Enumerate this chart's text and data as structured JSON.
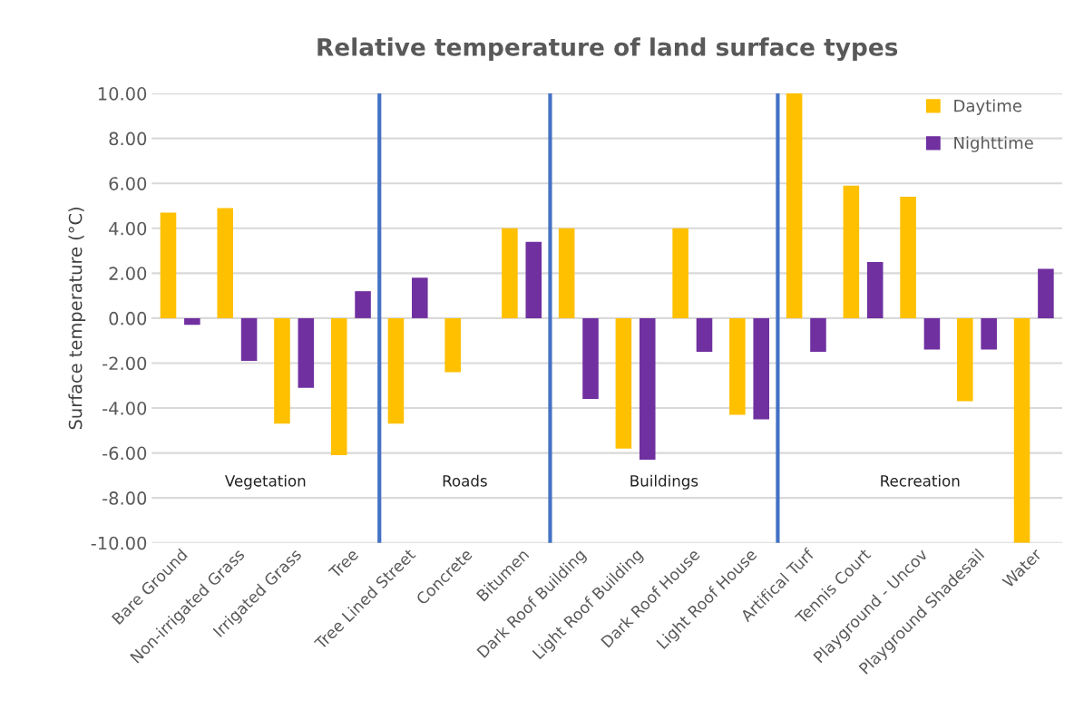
{
  "chart_data": {
    "type": "bar",
    "title": "Relative temperature of land surface types",
    "ylabel": "Surface temperature (°C)",
    "categories": [
      "Bare Ground",
      "Non-irrigated Grass",
      "Irrigated Grass",
      "Tree",
      "Tree Lined Street",
      "Concrete",
      "Bitumen",
      "Dark Roof Building",
      "Light Roof Building",
      "Dark Roof House",
      "Light Roof House",
      "Artifical Turf",
      "Tennis Court",
      "Playground - Uncov",
      "Playground Shadesail",
      "Water"
    ],
    "series": [
      {
        "name": "Daytime",
        "color": "#ffc000",
        "values": [
          4.7,
          4.9,
          -4.7,
          -6.1,
          -4.7,
          -2.4,
          4.0,
          4.0,
          -5.8,
          4.0,
          -4.3,
          10.0,
          5.9,
          5.4,
          -3.7,
          -10.0
        ]
      },
      {
        "name": "Nighttime",
        "color": "#7030a0",
        "values": [
          -0.3,
          -1.9,
          -3.1,
          1.2,
          1.8,
          null,
          3.4,
          -3.6,
          -6.3,
          -1.5,
          -4.5,
          -1.5,
          2.5,
          -1.4,
          -1.4,
          2.2
        ]
      }
    ],
    "ylim": [
      -10,
      10
    ],
    "yticks": [
      {
        "value": -10,
        "label": "-10.00"
      },
      {
        "value": -8,
        "label": "-8.00"
      },
      {
        "value": -6,
        "label": "-6.00"
      },
      {
        "value": -4,
        "label": "-4.00"
      },
      {
        "value": -2,
        "label": "-2.00"
      },
      {
        "value": 0,
        "label": "0.00"
      },
      {
        "value": 2,
        "label": "2.00"
      },
      {
        "value": 4,
        "label": "4.00"
      },
      {
        "value": 6,
        "label": "6.00"
      },
      {
        "value": 8,
        "label": "8.00"
      },
      {
        "value": 10,
        "label": "10.00"
      }
    ],
    "annotations": [
      "Vegetation",
      "Roads",
      "Buildings",
      "Recreation"
    ],
    "grid": "y",
    "legend": "top right"
  }
}
